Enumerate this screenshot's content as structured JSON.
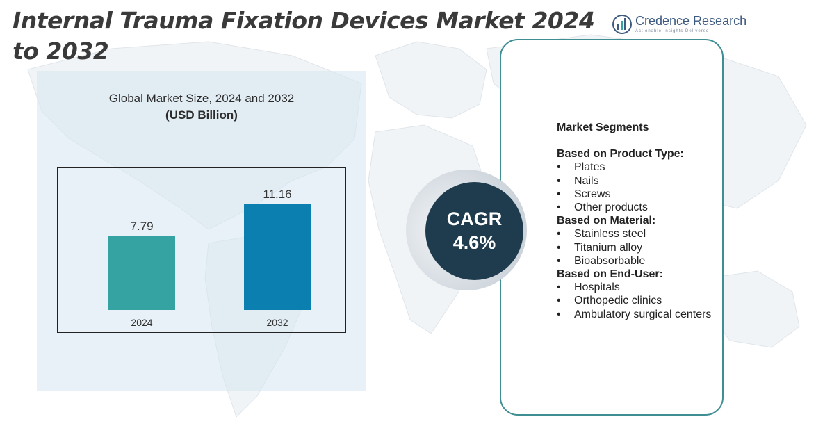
{
  "title": "Internal Trauma Fixation Devices Market 2024 to 2032",
  "logo": {
    "name": "Credence Research",
    "tagline": "Actionable Insights Delivered"
  },
  "chart_data": {
    "type": "bar",
    "title": "Global Market Size, 2024 and 2032",
    "unit": "(USD Billion)",
    "categories": [
      "2024",
      "2032"
    ],
    "values": [
      7.79,
      11.16
    ],
    "value_labels": [
      "7.79",
      "11.16"
    ],
    "colors": [
      "#35a3a2",
      "#0a7fb0"
    ],
    "ylim": [
      0,
      13.5
    ],
    "grid": false,
    "legend": "none"
  },
  "cagr": {
    "label": "CAGR",
    "value": "4.6%"
  },
  "segments": {
    "title": "Market Segments",
    "groups": [
      {
        "title": "Based on Product Type:",
        "items": [
          "Plates",
          "Nails",
          "Screws",
          "Other products"
        ]
      },
      {
        "title": "Based on Material:",
        "items": [
          "Stainless steel",
          "Titanium alloy",
          "Bioabsorbable"
        ]
      },
      {
        "title": "Based on End-User:",
        "items": [
          "Hospitals",
          "Orthopedic clinics",
          "Ambulatory surgical centers"
        ]
      }
    ]
  },
  "colors": {
    "title_text": "#3a3a3a",
    "panel_border": "#3e8e92",
    "cagr_fill": "#1f3c4e"
  }
}
